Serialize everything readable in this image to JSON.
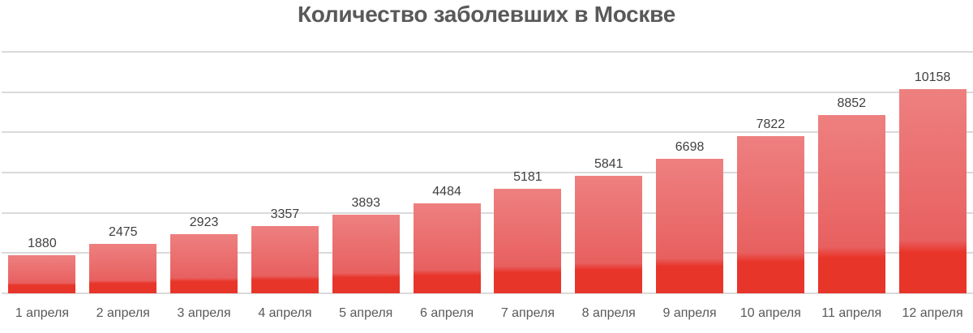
{
  "chart_data": {
    "type": "bar",
    "title": "Количество заболевших в Москве",
    "xlabel": "",
    "ylabel": "",
    "categories": [
      "1 апреля",
      "2 апреля",
      "3 апреля",
      "4 апреля",
      "5 апреля",
      "6 апреля",
      "7 апреля",
      "8 апреля",
      "9 апреля",
      "10 апреля",
      "11 апреля",
      "12 апреля"
    ],
    "values": [
      1880,
      2475,
      2923,
      3357,
      3893,
      4484,
      5181,
      5841,
      6698,
      7822,
      8852,
      10158
    ],
    "ylim": [
      0,
      12000
    ],
    "gridlines": [
      0,
      2000,
      4000,
      6000,
      8000,
      10000,
      12000
    ],
    "grid": true,
    "y_axis_labels_visible": false,
    "legend": null,
    "data_labels": true,
    "colors": {
      "bar_top": "#ee8080",
      "bar_bottom": "#e8352a",
      "grid": "#dadada",
      "title": "#595959",
      "label": "#404040"
    }
  }
}
